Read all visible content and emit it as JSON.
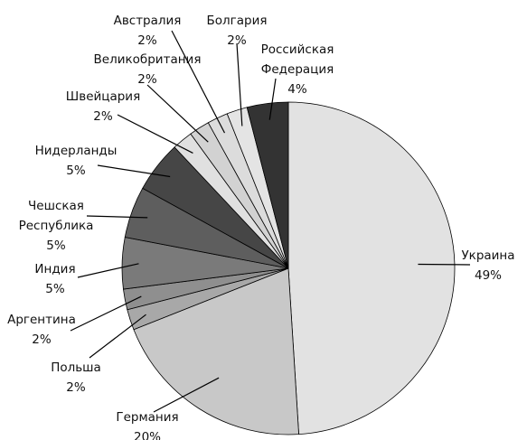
{
  "chart_data": {
    "type": "pie",
    "title": "",
    "slices": [
      {
        "label_lines": [
          "Украина"
        ],
        "value_text": "49%",
        "value": 49,
        "color": "#e2e2e2"
      },
      {
        "label_lines": [
          "Германия"
        ],
        "value_text": "20%",
        "value": 20,
        "color": "#c8c8c8"
      },
      {
        "label_lines": [
          "Польша"
        ],
        "value_text": "2%",
        "value": 2,
        "color": "#a8a8a8"
      },
      {
        "label_lines": [
          "Аргентина"
        ],
        "value_text": "2%",
        "value": 2,
        "color": "#8f8f8f"
      },
      {
        "label_lines": [
          "Индия"
        ],
        "value_text": "5%",
        "value": 5,
        "color": "#7a7a7a"
      },
      {
        "label_lines": [
          "Чешская",
          "Республика"
        ],
        "value_text": "5%",
        "value": 5,
        "color": "#5e5e5e"
      },
      {
        "label_lines": [
          "Нидерланды"
        ],
        "value_text": "5%",
        "value": 5,
        "color": "#464646"
      },
      {
        "label_lines": [
          "Швейцария"
        ],
        "value_text": "2%",
        "value": 2,
        "color": "#e0e0e0"
      },
      {
        "label_lines": [
          "Великобритания"
        ],
        "value_text": "2%",
        "value": 2,
        "color": "#d2d2d2"
      },
      {
        "label_lines": [
          "Австралия"
        ],
        "value_text": "2%",
        "value": 2,
        "color": "#dcdcdc"
      },
      {
        "label_lines": [
          "Болгария"
        ],
        "value_text": "2%",
        "value": 2,
        "color": "#e4e4e4"
      },
      {
        "label_lines": [
          "Российская",
          "Федерация"
        ],
        "value_text": "4%",
        "value": 4,
        "color": "#333333"
      }
    ]
  }
}
